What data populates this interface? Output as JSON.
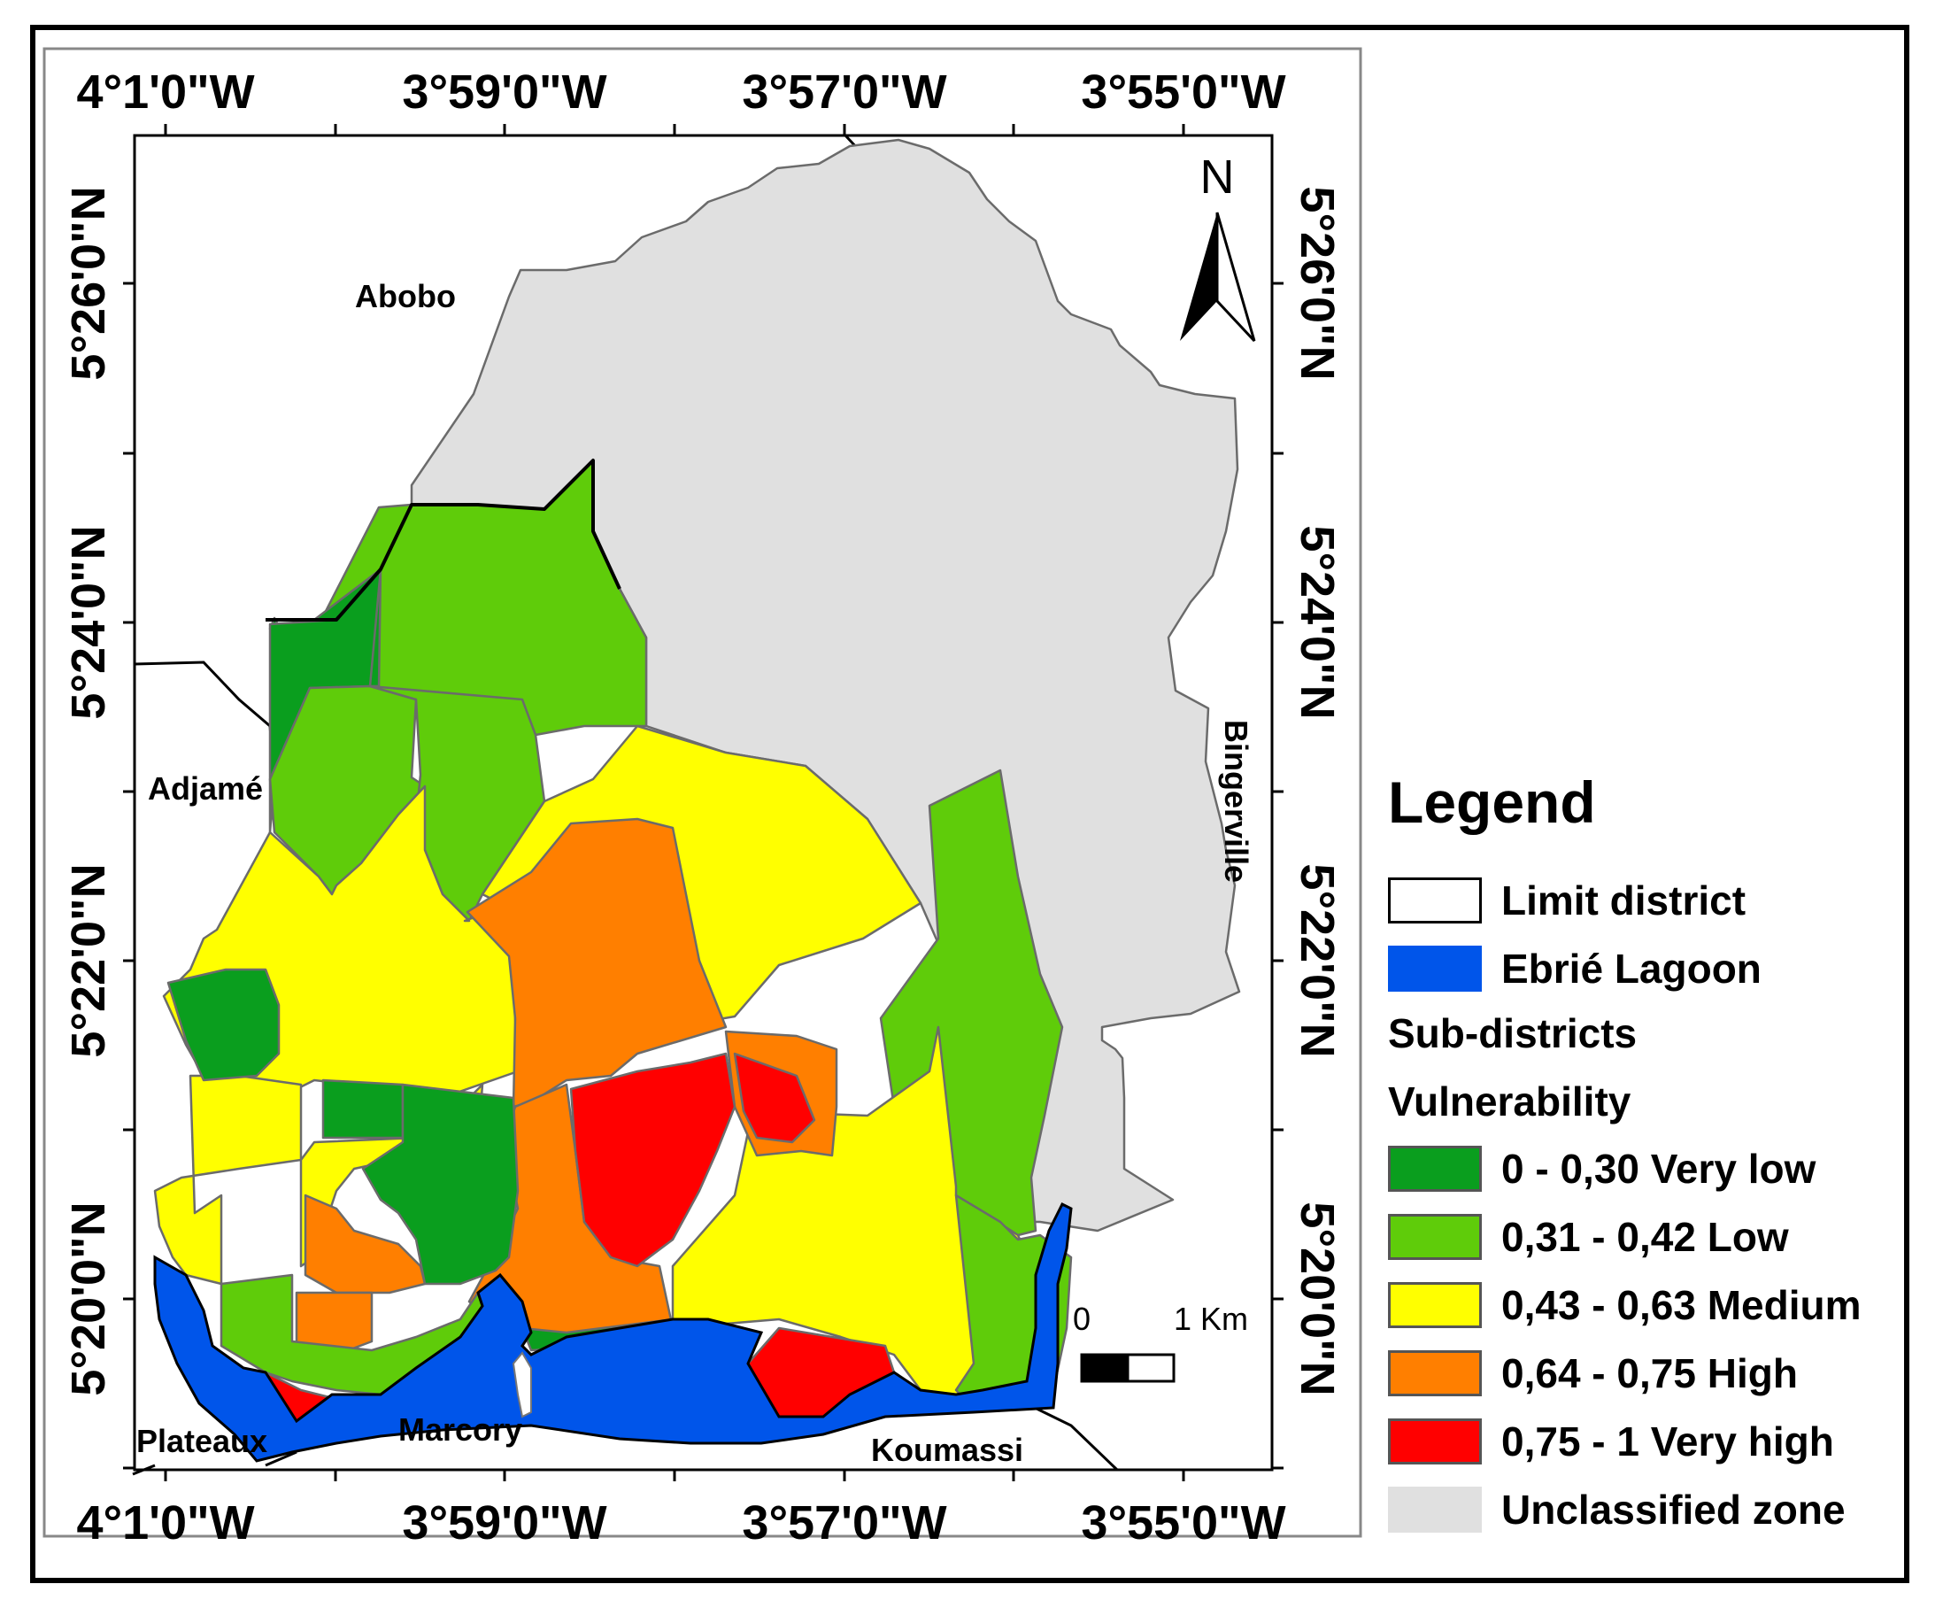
{
  "colors": {
    "very_low": "#0a9e1e",
    "low": "#5fcc0a",
    "medium": "#ffff00",
    "high": "#ff7f00",
    "very_high": "#ff0000",
    "unclassified": "#e0e0e0",
    "lagoon": "#0055ea",
    "limit": "#ffffff"
  },
  "axes": {
    "lon_top": [
      "4°1'0\"W",
      "3°59'0\"W",
      "3°57'0\"W",
      "3°55'0\"W"
    ],
    "lon_bottom": [
      "4°1'0\"W",
      "3°59'0\"W",
      "3°57'0\"W",
      "3°55'0\"W"
    ],
    "lat_left": [
      "5°26'0\"N",
      "5°24'0\"N",
      "5°22'0\"N",
      "5°20'0\"N"
    ],
    "lat_right": [
      "5°26'0\"N",
      "5°24'0\"N",
      "5°22'0\"N",
      "5°20'0\"N"
    ]
  },
  "places": {
    "abobo": "Abobo",
    "adjame": "Adjamé",
    "bingerville": "Bingerville",
    "plateaux": "Plateaux",
    "marcory": "Marcory",
    "koumassi": "Koumassi"
  },
  "north_arrow": {
    "label": "N",
    "icon": "north-arrow-icon"
  },
  "scale_bar": {
    "start": "0",
    "end": "1 Km"
  },
  "legend": {
    "title": "Legend",
    "limit_district": "Limit district",
    "lagoon": "Ebrié Lagoon",
    "sub_districts": "Sub-districts",
    "vulnerability": "Vulnerability",
    "classes": [
      {
        "label": "0 - 0,30 Very low",
        "color": "#0a9e1e"
      },
      {
        "label": "0,31 - 0,42 Low",
        "color": "#5fcc0a"
      },
      {
        "label": "0,43 - 0,63 Medium",
        "color": "#ffff00"
      },
      {
        "label": "0,64 - 0,75 High",
        "color": "#ff7f00"
      },
      {
        "label": "0,75 - 1 Very high",
        "color": "#ff0000"
      }
    ],
    "unclassified": "Unclassified zone"
  }
}
